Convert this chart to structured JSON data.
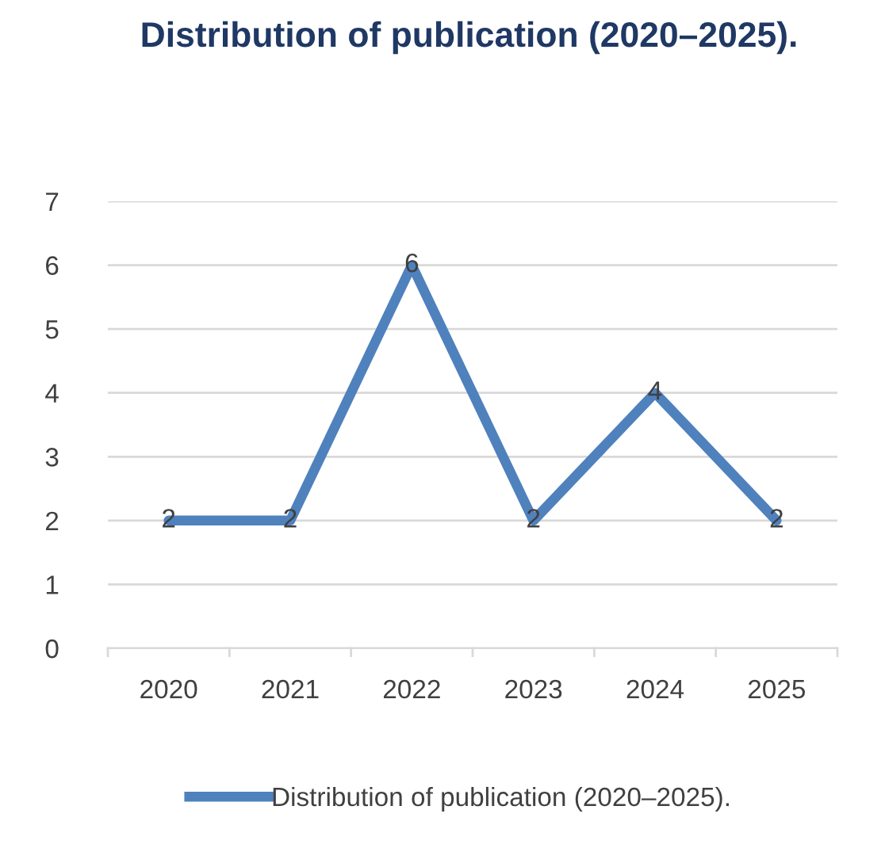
{
  "chart_data": {
    "type": "line",
    "title": "Distribution of publication (2020–2025).",
    "categories": [
      "2020",
      "2021",
      "2022",
      "2023",
      "2024",
      "2025"
    ],
    "series": [
      {
        "name": "Distribution of publication (2020–2025).",
        "color": "#4f81bd",
        "values": [
          2,
          2,
          6,
          2,
          4,
          2
        ]
      }
    ],
    "ylim": [
      0,
      7
    ],
    "yticks": [
      0,
      1,
      2,
      3,
      4,
      5,
      6,
      7
    ],
    "grid": "y",
    "legend": "bottom",
    "data_labels": true,
    "marker": "none",
    "line_style": "solid"
  }
}
